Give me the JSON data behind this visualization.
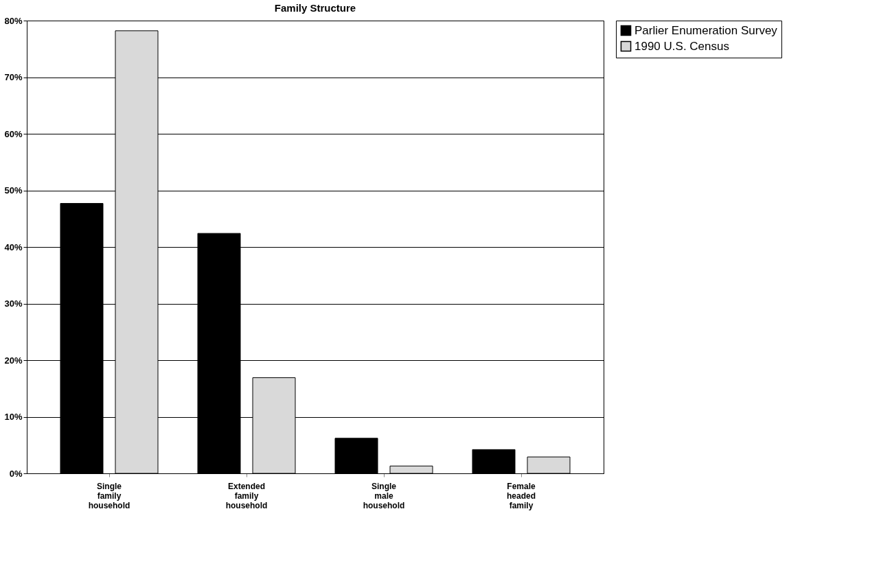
{
  "chart_data": {
    "type": "bar",
    "title": "Family Structure",
    "categories": [
      "Single family household",
      "Extended family household",
      "Single male household",
      "Female headed family"
    ],
    "series": [
      {
        "name": "Parlier Enumeration Survey",
        "color": "#000000",
        "values": [
          47.7,
          42.4,
          6.2,
          4.2
        ]
      },
      {
        "name": "1990 U.S. Census",
        "color": "#d9d9d9",
        "values": [
          78.2,
          16.9,
          1.3,
          2.9
        ]
      }
    ],
    "ylim": [
      0,
      80
    ],
    "yticks": [
      {
        "value": 0,
        "label": "0%"
      },
      {
        "value": 10,
        "label": "10%"
      },
      {
        "value": 20,
        "label": "20%"
      },
      {
        "value": 30,
        "label": "30%"
      },
      {
        "value": 40,
        "label": "40%"
      },
      {
        "value": 50,
        "label": "50%"
      },
      {
        "value": 60,
        "label": "60%"
      },
      {
        "value": 70,
        "label": "70%"
      },
      {
        "value": 80,
        "label": "80%"
      }
    ],
    "grid": "y",
    "legend": "right"
  }
}
